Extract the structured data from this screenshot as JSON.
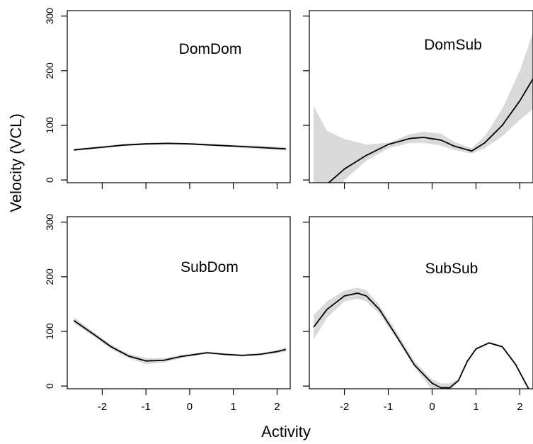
{
  "figure": {
    "ylabel": "Velocity (VCL)",
    "xlabel": "Activity"
  },
  "chart_data": [
    {
      "type": "line",
      "title": "DomDom",
      "xlim": [
        -2.8,
        2.3
      ],
      "ylim": [
        -5,
        310
      ],
      "yticks": [
        0,
        100,
        200,
        300
      ],
      "xticks": [
        -2,
        -1,
        0,
        1,
        2
      ],
      "show_ytick_labels": true,
      "show_xtick_labels": false,
      "x": [
        -2.65,
        -2.0,
        -1.5,
        -1.0,
        -0.5,
        0.0,
        0.5,
        1.0,
        1.5,
        2.2
      ],
      "fit": [
        55,
        60,
        64,
        66,
        67,
        66,
        64,
        62,
        60,
        57
      ],
      "lower": [
        53,
        58,
        62,
        64,
        65,
        64,
        62,
        60,
        57,
        54
      ],
      "upper": [
        57,
        62,
        66,
        68,
        69,
        68,
        66,
        64,
        63,
        60
      ]
    },
    {
      "type": "line",
      "title": "DomSub",
      "xlim": [
        -2.8,
        2.3
      ],
      "ylim": [
        -5,
        310
      ],
      "yticks": [
        0,
        100,
        200,
        300
      ],
      "xticks": [
        -2,
        -1,
        0,
        1,
        2
      ],
      "show_ytick_labels": false,
      "show_xtick_labels": false,
      "x": [
        -2.7,
        -2.4,
        -2.0,
        -1.5,
        -1.0,
        -0.5,
        -0.2,
        0.2,
        0.5,
        0.9,
        1.2,
        1.6,
        2.0,
        2.3
      ],
      "fit": [
        -40,
        -8,
        20,
        45,
        65,
        76,
        78,
        73,
        62,
        53,
        68,
        100,
        145,
        185
      ],
      "lower": [
        -150,
        -60,
        0,
        35,
        58,
        68,
        68,
        63,
        55,
        48,
        58,
        80,
        110,
        130
      ],
      "upper": [
        135,
        90,
        75,
        65,
        68,
        84,
        88,
        85,
        70,
        58,
        80,
        130,
        200,
        270
      ]
    },
    {
      "type": "line",
      "title": "SubDom",
      "xlim": [
        -2.8,
        2.3
      ],
      "ylim": [
        -5,
        310
      ],
      "yticks": [
        0,
        100,
        200,
        300
      ],
      "xticks": [
        -2,
        -1,
        0,
        1,
        2
      ],
      "show_ytick_labels": true,
      "show_xtick_labels": true,
      "x": [
        -2.65,
        -2.2,
        -1.8,
        -1.4,
        -1.0,
        -0.6,
        -0.2,
        0.4,
        0.8,
        1.2,
        1.6,
        2.0,
        2.2
      ],
      "fit": [
        120,
        95,
        72,
        55,
        46,
        47,
        54,
        61,
        58,
        56,
        58,
        63,
        67
      ],
      "lower": [
        115,
        91,
        68,
        51,
        40,
        43,
        51,
        59,
        56,
        54,
        56,
        60,
        63
      ],
      "upper": [
        126,
        99,
        76,
        59,
        51,
        51,
        57,
        63,
        60,
        58,
        60,
        66,
        71
      ]
    },
    {
      "type": "line",
      "title": "SubSub",
      "xlim": [
        -2.8,
        2.3
      ],
      "ylim": [
        -5,
        310
      ],
      "yticks": [
        0,
        100,
        200,
        300
      ],
      "xticks": [
        -2,
        -1,
        0,
        1,
        2
      ],
      "show_ytick_labels": false,
      "show_xtick_labels": true,
      "x": [
        -2.7,
        -2.4,
        -2.0,
        -1.7,
        -1.5,
        -1.2,
        -0.8,
        -0.4,
        0.0,
        0.2,
        0.4,
        0.6,
        0.8,
        1.0,
        1.3,
        1.6,
        1.9,
        2.2
      ],
      "fit": [
        108,
        140,
        165,
        170,
        165,
        140,
        90,
        38,
        5,
        -3,
        -3,
        10,
        45,
        68,
        79,
        72,
        40,
        -5
      ],
      "lower": [
        85,
        125,
        155,
        160,
        155,
        132,
        85,
        35,
        -8,
        -15,
        -10,
        8,
        43,
        66,
        77,
        70,
        38,
        -8
      ],
      "upper": [
        130,
        155,
        175,
        180,
        175,
        148,
        98,
        45,
        12,
        5,
        5,
        13,
        48,
        70,
        81,
        74,
        43,
        -2
      ]
    }
  ]
}
